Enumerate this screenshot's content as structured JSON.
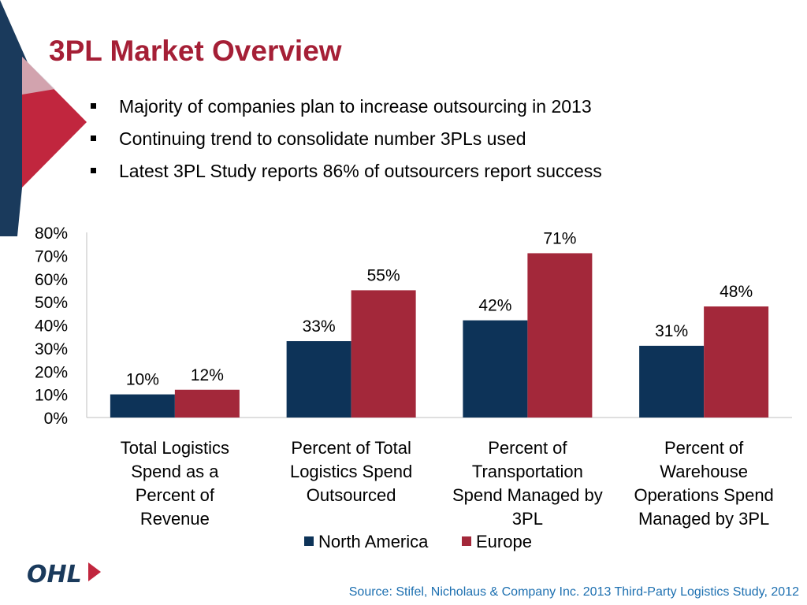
{
  "slide": {
    "title": "3PL Market Overview",
    "bullets": [
      "Majority of companies plan to increase outsourcing in 2013",
      "Continuing trend to consolidate number 3PLs used",
      "Latest 3PL Study reports 86% of outsourcers report success"
    ],
    "source": "Source: Stifel, Nicholaus & Company Inc. 2013 Third-Party Logistics Study, 2012",
    "logo_text": "OHL"
  },
  "colors": {
    "title": "#a51f36",
    "north_america": "#0d3358",
    "europe": "#a3283a",
    "source": "#1c6fb0"
  },
  "chart_data": {
    "type": "bar",
    "categories": [
      [
        "Total Logistics",
        "Spend as a",
        "Percent of",
        "Revenue"
      ],
      [
        "Percent of Total",
        "Logistics Spend",
        "Outsourced"
      ],
      [
        "Percent of",
        "Transportation",
        "Spend Managed by",
        "3PL"
      ],
      [
        "Percent of",
        "Warehouse",
        "Operations Spend",
        "Managed by 3PL"
      ]
    ],
    "series": [
      {
        "name": "North America",
        "values": [
          10,
          33,
          42,
          31
        ],
        "labels": [
          "10%",
          "33%",
          "42%",
          "31%"
        ],
        "color": "#0d3358"
      },
      {
        "name": "Europe",
        "values": [
          12,
          55,
          71,
          48
        ],
        "labels": [
          "12%",
          "55%",
          "71%",
          "48%"
        ],
        "color": "#a3283a"
      }
    ],
    "yticks": [
      "0%",
      "10%",
      "20%",
      "30%",
      "40%",
      "50%",
      "60%",
      "70%",
      "80%"
    ],
    "ylim": [
      0,
      80
    ],
    "grid": false,
    "legend_position": "bottom"
  }
}
